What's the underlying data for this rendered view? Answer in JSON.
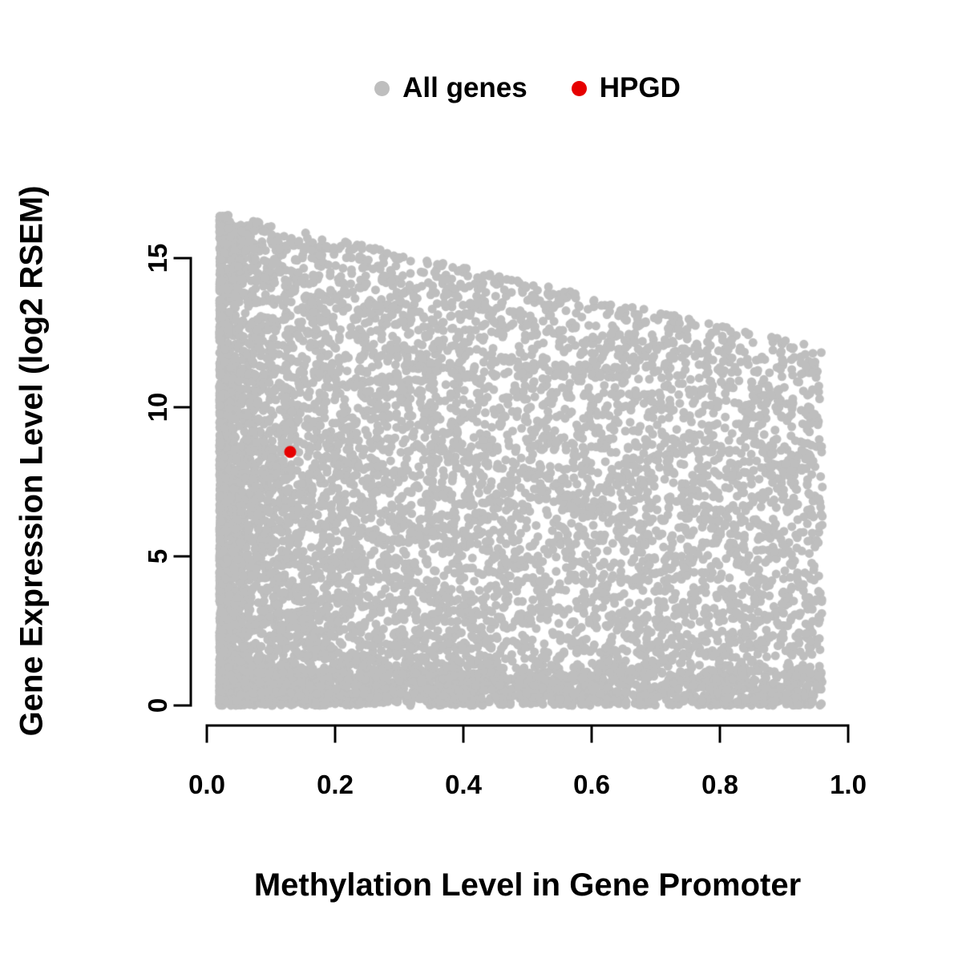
{
  "chart_data": {
    "type": "scatter",
    "title": "",
    "xlabel": "Methylation Level in Gene Promoter",
    "ylabel": "Gene Expression Level (log2 RSEM)",
    "xlim": [
      0.0,
      1.0
    ],
    "ylim": [
      0,
      15
    ],
    "grid": false,
    "x_ticks": [
      "0.0",
      "0.2",
      "0.4",
      "0.6",
      "0.8",
      "1.0"
    ],
    "x_tick_values": [
      0.0,
      0.2,
      0.4,
      0.6,
      0.8,
      1.0
    ],
    "y_ticks": [
      "0",
      "5",
      "10",
      "15"
    ],
    "y_tick_values": [
      0,
      5,
      10,
      15
    ],
    "legend": {
      "position": "top",
      "entries": [
        {
          "label": "All genes",
          "color": "#bebebe"
        },
        {
          "label": "HPGD",
          "color": "#e60000"
        }
      ]
    },
    "series": [
      {
        "name": "All genes",
        "color": "#bebebe",
        "type": "synthetic-cloud",
        "summary": {
          "n_points": 9000,
          "x_range": [
            0.02,
            0.96
          ],
          "y_range": [
            0,
            16.6
          ],
          "upper_envelope": "y = 16.6 - 4.8x (max expression declines as promoter methylation rises)",
          "density": "very dense at low methylation across all expression levels and along the y=0 baseline; sparser scattered points toward the upper envelope and high methylation"
        },
        "gen": {
          "seed": 42,
          "n": 9000,
          "x_min": 0.02,
          "x_max": 0.96,
          "skew_fraction": 0.62,
          "skew_power": 2.3,
          "env_y0": 16.6,
          "env_slope": -4.8,
          "y_power": 1.2,
          "bottom_fraction": 0.12,
          "bottom_max": 1.2,
          "radius": 5.5
        }
      },
      {
        "name": "HPGD",
        "color": "#e60000",
        "points": [
          [
            0.13,
            8.5
          ]
        ],
        "radius": 7.5
      }
    ]
  }
}
